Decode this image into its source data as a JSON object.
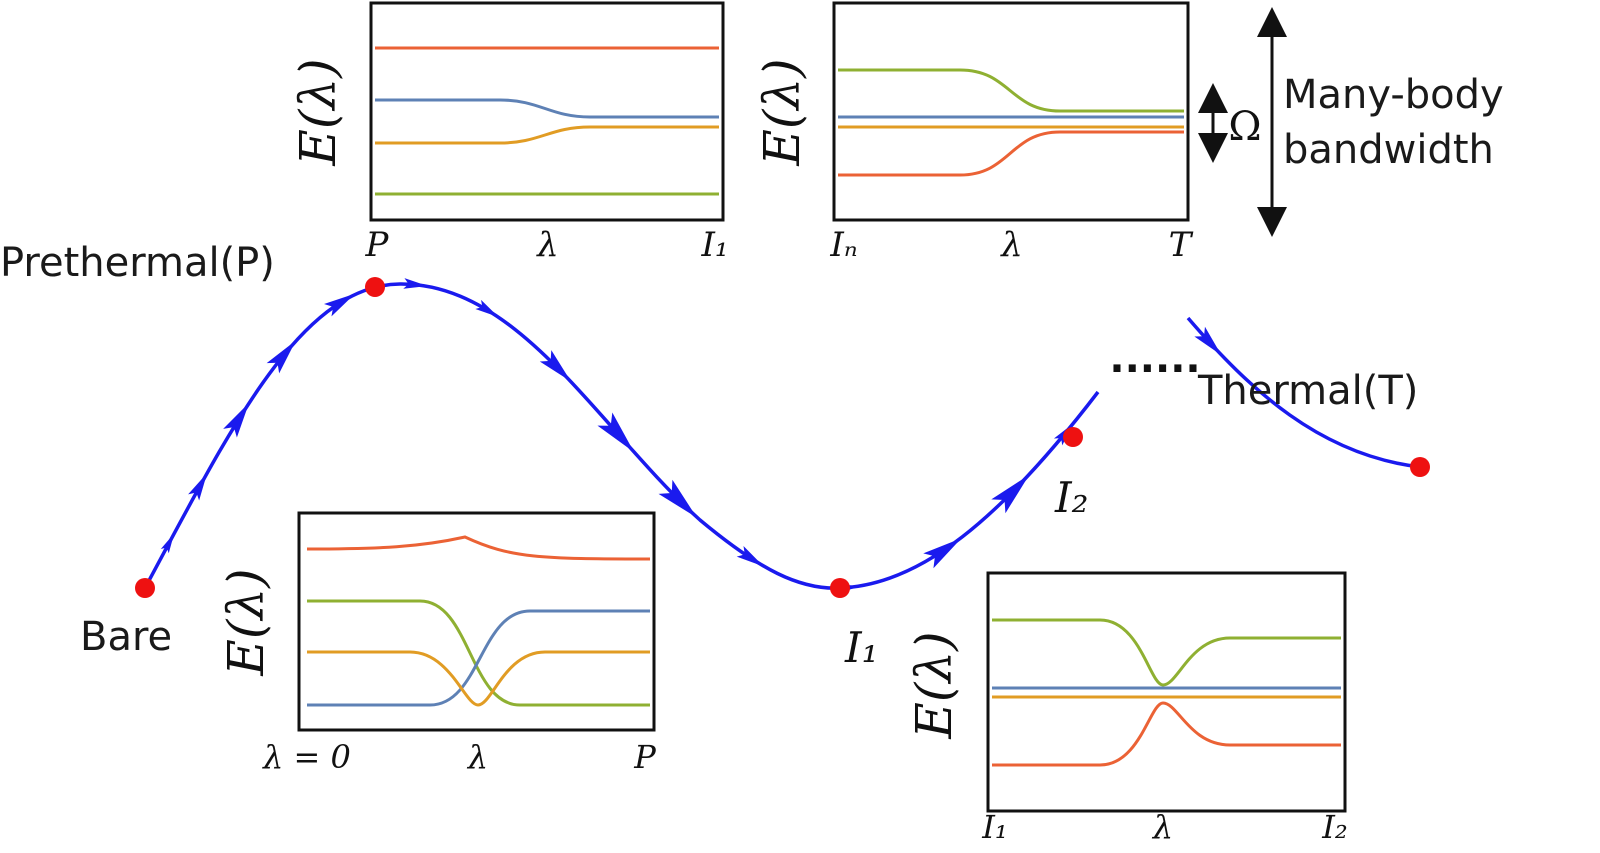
{
  "nodes": [
    {
      "label": "Bare"
    },
    {
      "label": "Prethermal(P)"
    },
    {
      "label": "I₁"
    },
    {
      "label": "I₂"
    },
    {
      "label": "Thermal(T)"
    }
  ],
  "ellipsis": "......",
  "insets": [
    {
      "y_label": "E(λ)",
      "x_labels": [
        "P",
        "λ",
        "I₁"
      ]
    },
    {
      "y_label": "E(λ)",
      "x_labels": [
        "Iₙ",
        "λ",
        "T"
      ]
    },
    {
      "y_label": "E(λ)",
      "x_labels": [
        "λ = 0",
        "λ",
        "P"
      ]
    },
    {
      "y_label": "E(λ)",
      "x_labels": [
        "I₁",
        "λ",
        "I₂"
      ]
    }
  ],
  "bandwidth": {
    "omega": "Ω",
    "label": [
      "Many-body",
      "bandwidth"
    ]
  }
}
